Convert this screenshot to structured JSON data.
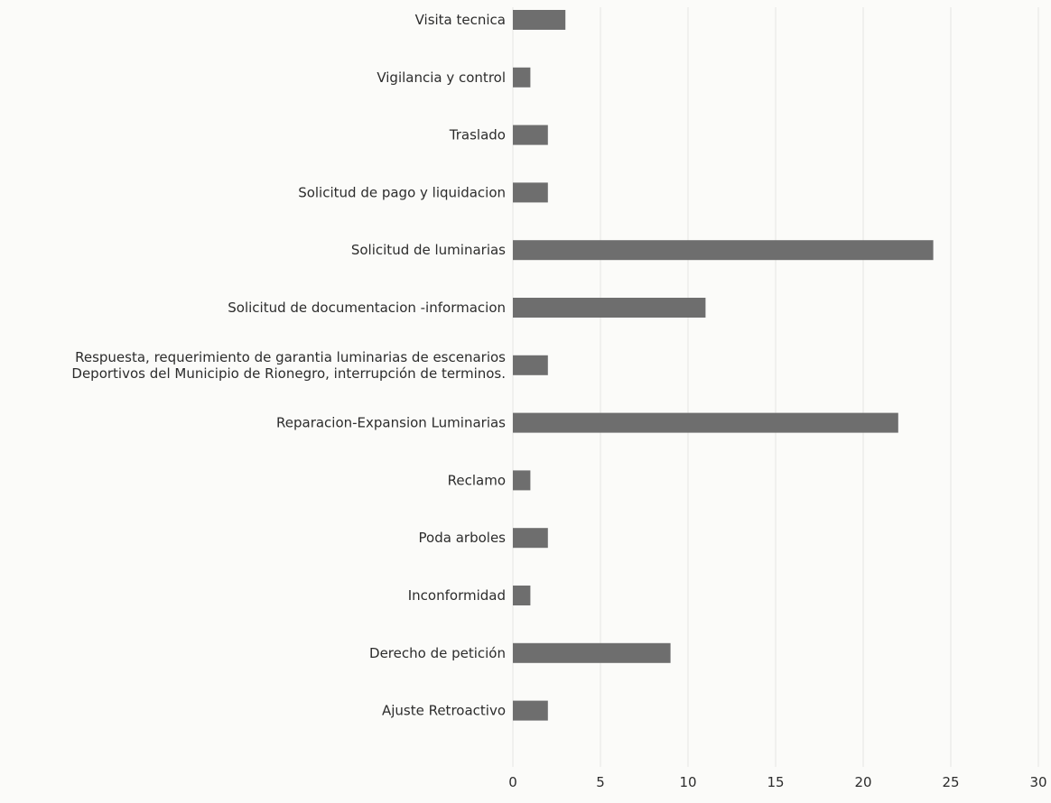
{
  "chart_data": {
    "type": "bar",
    "orientation": "horizontal",
    "title": "",
    "xlabel": "",
    "ylabel": "",
    "xlim": [
      0,
      30
    ],
    "xticks": [
      "0",
      "5",
      "10",
      "15",
      "20",
      "25",
      "30"
    ],
    "grid": true,
    "categories": [
      [
        "Visita tecnica"
      ],
      [
        "Vigilancia y control"
      ],
      [
        "Traslado"
      ],
      [
        "Solicitud de pago y liquidacion"
      ],
      [
        "Solicitud de luminarias"
      ],
      [
        "Solicitud de documentacion -informacion"
      ],
      [
        "Respuesta, requerimiento de garantia luminarias de escenarios",
        "Deportivos del Municipio de Rionegro, interrupción de terminos."
      ],
      [
        "Reparacion-Expansion Luminarias"
      ],
      [
        "Reclamo"
      ],
      [
        "Poda arboles"
      ],
      [
        "Inconformidad"
      ],
      [
        "Derecho de petición"
      ],
      [
        "Ajuste Retroactivo"
      ]
    ],
    "values": [
      3,
      1,
      2,
      2,
      24,
      11,
      2,
      22,
      1,
      2,
      1,
      9,
      2
    ],
    "bar_color": "#6e6e6e"
  }
}
